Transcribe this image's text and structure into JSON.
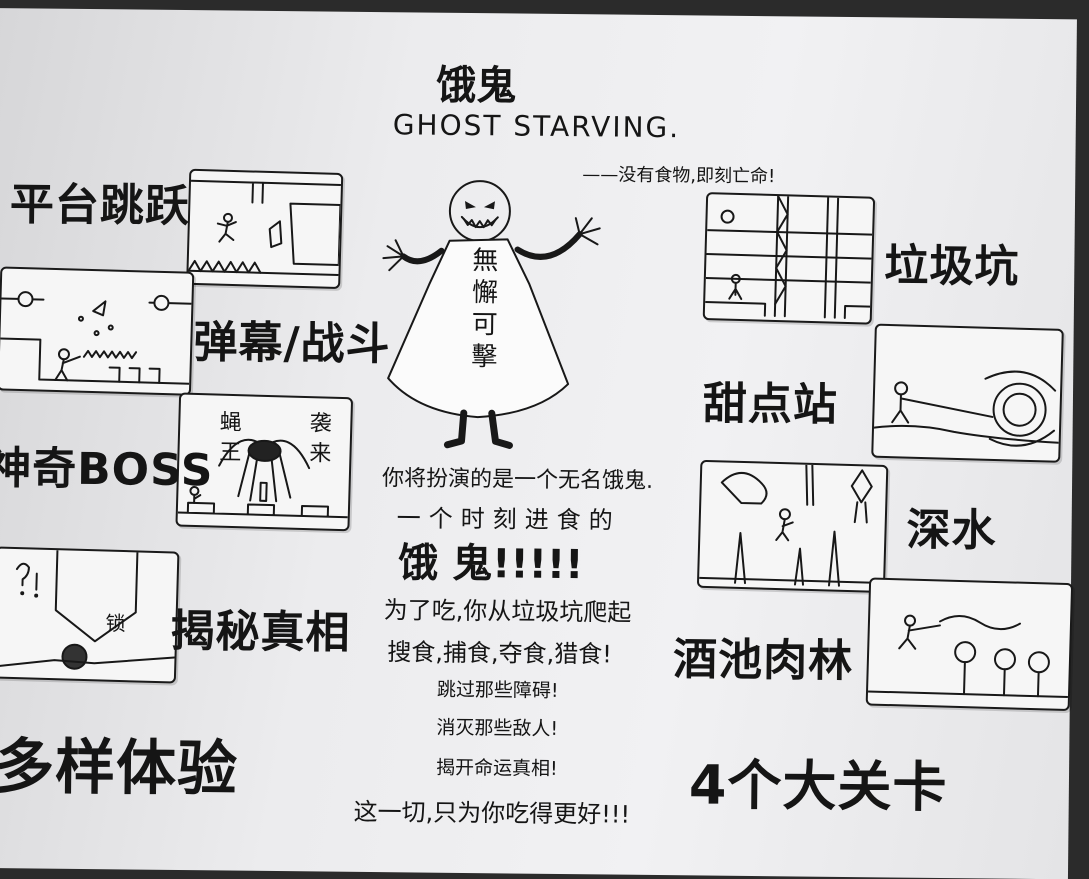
{
  "title": {
    "chinese": "饿鬼",
    "english": "GHOST STARVING.",
    "tagline": "——没有食物,即刻亡命!"
  },
  "character": {
    "cape_text": "無懈可擊"
  },
  "features_left": [
    {
      "label": "平台跳跃"
    },
    {
      "label": "弹幕/战斗"
    },
    {
      "label": "神奇BOSS"
    },
    {
      "label": "揭秘真相"
    },
    {
      "label": "多样体验"
    }
  ],
  "features_right": [
    {
      "label": "垃圾坑"
    },
    {
      "label": "甜点站"
    },
    {
      "label": "深水"
    },
    {
      "label": "酒池肉林"
    },
    {
      "label": "4个大关卡"
    }
  ],
  "panel_texts": {
    "boss_left": "蝇王",
    "boss_right": "袭来",
    "lock": "锁"
  },
  "story": {
    "line1": "你将扮演的是一个无名饿鬼.",
    "line2": "一个时刻进食的",
    "line3": "饿  鬼!!!!!",
    "line4": "为了吃,你从垃圾坑爬起",
    "line5": "搜食,捕食,夺食,猎食!",
    "line6": "跳过那些障碍!",
    "line7": "消灭那些敌人!",
    "line8": "揭开命运真相!",
    "line9": "这一切,只为你吃得更好!!!"
  }
}
